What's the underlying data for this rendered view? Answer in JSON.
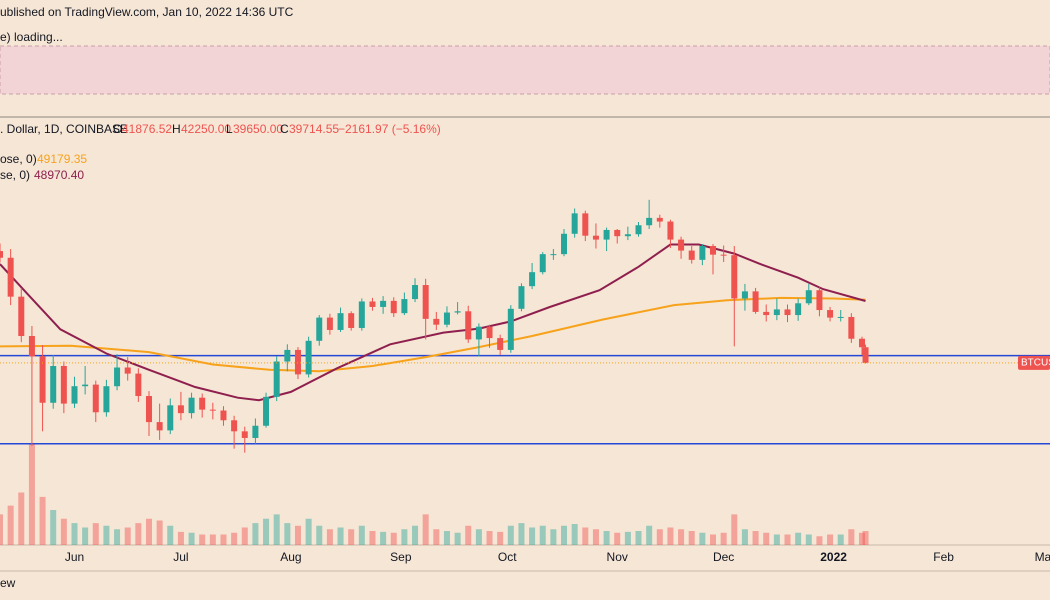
{
  "header": {
    "publisher": "ublished on TradingView.com, Jan 10, 2022 14:36 UTC",
    "indicator_status": "e) loading...",
    "symbol": ". Dollar, 1D, COINBASE",
    "ohlc": [
      {
        "label": "O",
        "value": "41876.52"
      },
      {
        "label": "H",
        "value": "42250.00"
      },
      {
        "label": "L",
        "value": "39650.00"
      },
      {
        "label": "C",
        "value": "39714.55"
      }
    ],
    "change": "−2161.97 (−5.16%)",
    "footer": "ew"
  },
  "chart_data": {
    "type": "candlestick",
    "log_scale": true,
    "up_color": "#26a69a",
    "down_color": "#ef5350",
    "xlim": [
      0,
      296
    ],
    "xticks": [
      {
        "value": 21,
        "label": "Jun"
      },
      {
        "value": 51,
        "label": "Jul"
      },
      {
        "value": 82,
        "label": "Aug"
      },
      {
        "value": 113,
        "label": "Sep"
      },
      {
        "value": 143,
        "label": "Oct"
      },
      {
        "value": 174,
        "label": "Nov"
      },
      {
        "value": 204,
        "label": "Dec"
      },
      {
        "value": 235,
        "label": "2022"
      },
      {
        "value": 266,
        "label": "Feb"
      },
      {
        "value": 294,
        "label": "Ma"
      }
    ],
    "ylim": [
      21800,
      87400
    ],
    "x": [
      0,
      3,
      6,
      9,
      12,
      15,
      18,
      21,
      24,
      27,
      30,
      33,
      36,
      39,
      42,
      45,
      48,
      51,
      54,
      57,
      60,
      63,
      66,
      69,
      72,
      75,
      78,
      81,
      84,
      87,
      90,
      93,
      96,
      99,
      102,
      105,
      108,
      111,
      114,
      117,
      120,
      123,
      126,
      129,
      132,
      135,
      138,
      141,
      144,
      147,
      150,
      153,
      156,
      159,
      162,
      165,
      168,
      171,
      174,
      177,
      180,
      183,
      186,
      189,
      192,
      195,
      198,
      201,
      204,
      207,
      210,
      213,
      216,
      219,
      222,
      225,
      228,
      231,
      234,
      237,
      240,
      243,
      244
    ],
    "open": [
      58000,
      56700,
      49700,
      43500,
      40600,
      34700,
      39300,
      34600,
      36700,
      36900,
      33600,
      36700,
      39100,
      38300,
      35500,
      32500,
      31600,
      34400,
      33500,
      35300,
      33900,
      33800,
      32700,
      31500,
      30800,
      32100,
      35400,
      39900,
      41500,
      38200,
      42800,
      46300,
      44400,
      47000,
      44700,
      48900,
      48000,
      49000,
      47000,
      49300,
      51700,
      46100,
      45200,
      47100,
      47300,
      43000,
      44900,
      43200,
      41500,
      47700,
      51500,
      54000,
      57400,
      57400,
      61500,
      65900,
      61100,
      60300,
      62300,
      61000,
      61400,
      63300,
      64900,
      64100,
      60300,
      58100,
      56300,
      59000,
      57300,
      57200,
      49400,
      50600,
      47200,
      46700,
      47600,
      46700,
      48600,
      50800,
      47500,
      46300,
      46400,
      43100,
      41876.52
    ],
    "high": [
      59500,
      58400,
      51200,
      45000,
      42200,
      40800,
      39900,
      37900,
      39300,
      37400,
      37500,
      40900,
      40500,
      39000,
      36100,
      34600,
      35200,
      36000,
      35900,
      35800,
      34700,
      34300,
      33200,
      32000,
      32900,
      35900,
      40600,
      42300,
      41900,
      43400,
      46700,
      46900,
      47900,
      47300,
      49400,
      49500,
      49800,
      49600,
      50400,
      52900,
      52800,
      47200,
      48100,
      48800,
      48200,
      45400,
      45200,
      43700,
      48300,
      52000,
      55700,
      57800,
      58400,
      62500,
      67000,
      66500,
      63700,
      62800,
      62500,
      63000,
      64000,
      69000,
      65600,
      64500,
      60900,
      59000,
      59400,
      59400,
      59100,
      59000,
      51900,
      51200,
      48400,
      49400,
      48400,
      49400,
      51900,
      51300,
      48000,
      47500,
      47000,
      43400,
      42250
    ],
    "low": [
      55800,
      48300,
      42600,
      30000,
      31500,
      34000,
      33500,
      34100,
      35700,
      32500,
      33100,
      36200,
      37400,
      34800,
      31000,
      30600,
      31200,
      32700,
      32900,
      33000,
      32800,
      32100,
      29700,
      29300,
      30200,
      31900,
      34900,
      38600,
      37600,
      37800,
      42100,
      43700,
      44100,
      44300,
      44300,
      47400,
      46900,
      46400,
      46700,
      48800,
      43000,
      44400,
      44800,
      46800,
      42500,
      40600,
      41800,
      40800,
      41100,
      47300,
      51000,
      53600,
      56300,
      57000,
      60700,
      60000,
      58500,
      58000,
      59500,
      60200,
      60900,
      62500,
      62800,
      58600,
      56500,
      55600,
      55300,
      53600,
      55900,
      42000,
      47400,
      46900,
      45700,
      45900,
      45600,
      45800,
      48300,
      46500,
      45700,
      45700,
      42500,
      40800,
      39650
    ],
    "close": [
      56700,
      49700,
      43500,
      40600,
      34700,
      39300,
      34600,
      36700,
      36900,
      33600,
      36700,
      39100,
      38300,
      35500,
      32500,
      31600,
      34400,
      33500,
      35300,
      33900,
      33800,
      32700,
      31500,
      30800,
      32100,
      35400,
      39900,
      41500,
      38200,
      42800,
      46300,
      44400,
      47000,
      44700,
      48900,
      48000,
      49000,
      47000,
      49300,
      51700,
      46100,
      45200,
      47100,
      47300,
      43000,
      44900,
      43200,
      41500,
      47700,
      51500,
      54000,
      57400,
      57400,
      61500,
      65900,
      61100,
      60300,
      62300,
      61000,
      61400,
      63300,
      64900,
      64100,
      60300,
      58100,
      56300,
      59000,
      57300,
      57200,
      49400,
      50600,
      47200,
      46700,
      47600,
      46700,
      48600,
      50800,
      47500,
      46300,
      46400,
      43100,
      41876.52,
      39714.55
    ],
    "volume": [
      35,
      45,
      60,
      115,
      55,
      40,
      30,
      25,
      20,
      25,
      22,
      18,
      20,
      25,
      30,
      28,
      22,
      15,
      14,
      12,
      12,
      12,
      14,
      20,
      25,
      30,
      35,
      25,
      22,
      30,
      22,
      18,
      20,
      18,
      22,
      16,
      15,
      14,
      18,
      22,
      35,
      18,
      16,
      14,
      22,
      18,
      16,
      15,
      22,
      25,
      20,
      22,
      18,
      22,
      24,
      20,
      18,
      16,
      14,
      15,
      16,
      22,
      18,
      20,
      18,
      16,
      14,
      12,
      14,
      35,
      18,
      16,
      14,
      12,
      12,
      14,
      12,
      10,
      12,
      12,
      18,
      14,
      16
    ],
    "volume_ylim": [
      0,
      120
    ],
    "levels": [
      40700,
      30200
    ],
    "level_color": "#2447d8",
    "last_price_color": "#f7a21b",
    "price_label": "BTCUS",
    "moving_averages": [
      {
        "legend": "ose, 0)",
        "value_label": "49179.35",
        "color": "#f7a21b",
        "x": [
          0,
          20,
          42,
          60,
          76,
          90,
          105,
          120,
          135,
          150,
          170,
          190,
          205,
          220,
          235,
          244
        ],
        "values": [
          42000,
          42100,
          41200,
          39500,
          38800,
          38600,
          39300,
          40500,
          41900,
          43500,
          46000,
          48300,
          49100,
          49500,
          49400,
          49179.35
        ]
      },
      {
        "legend": "se, 0)",
        "value_label": "48970.40",
        "color": "#8e1f4e",
        "x": [
          0,
          8,
          17,
          30,
          42,
          55,
          67,
          73,
          82,
          95,
          110,
          125,
          135,
          144,
          155,
          169,
          180,
          189,
          197,
          207,
          214,
          225,
          232,
          244
        ],
        "values": [
          55500,
          50000,
          44500,
          41000,
          38800,
          36600,
          35300,
          35000,
          36000,
          39000,
          42300,
          44000,
          44600,
          45700,
          48000,
          50800,
          55000,
          59300,
          59300,
          57500,
          55600,
          53000,
          51000,
          48970.4
        ]
      }
    ]
  }
}
